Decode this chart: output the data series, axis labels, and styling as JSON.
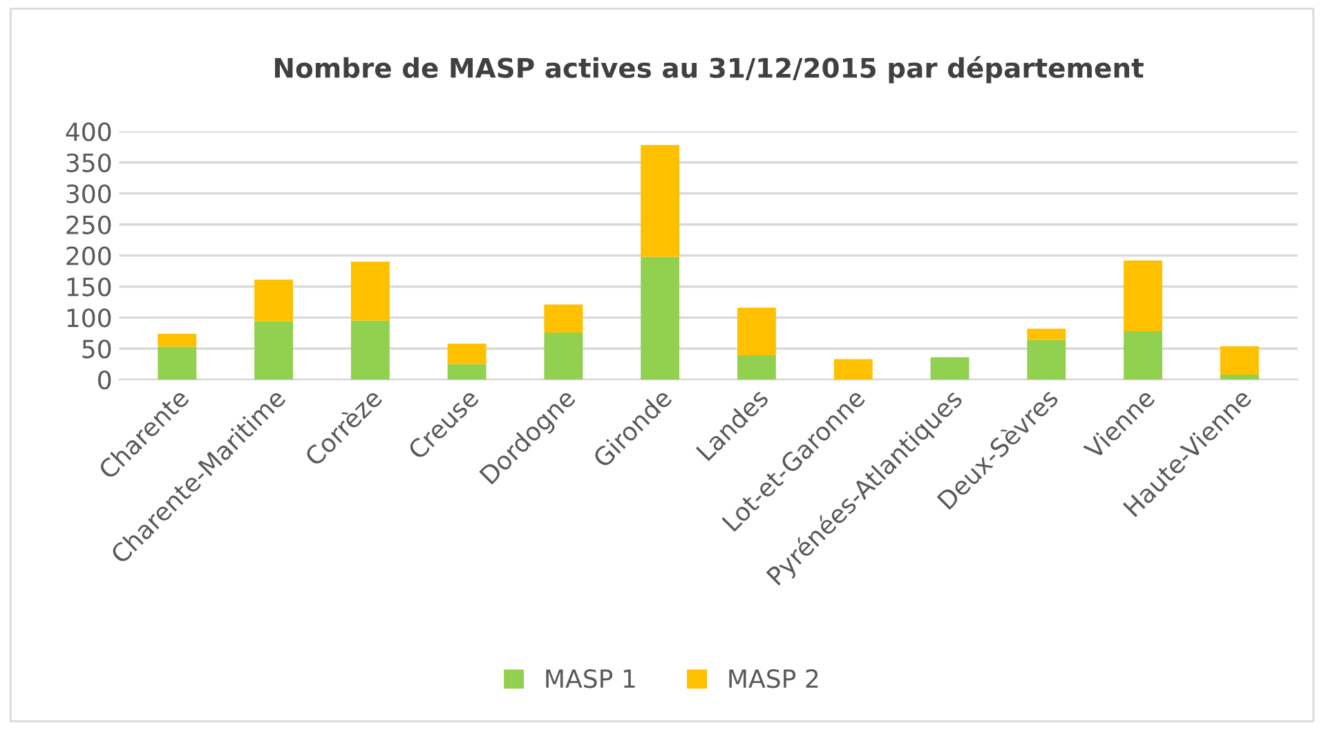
{
  "chart_data": {
    "type": "bar",
    "title": "Nombre de MASP actives au 31/12/2015 par département",
    "categories": [
      "Charente",
      "Charente-Maritime",
      "Corrèze",
      "Creuse",
      "Dordogne",
      "Gironde",
      "Landes",
      "Lot-et-Garonne",
      "Pyrénées-Atlantiques",
      "Deux-Sèvres",
      "Vienne",
      "Haute-Vienne"
    ],
    "series": [
      {
        "name": "MASP 1",
        "color": "#92d050",
        "values": [
          53,
          94,
          95,
          25,
          76,
          198,
          39,
          0,
          36,
          64,
          78,
          8
        ]
      },
      {
        "name": "MASP 2",
        "color": "#ffc000",
        "values": [
          21,
          67,
          95,
          33,
          45,
          180,
          77,
          33,
          0,
          18,
          114,
          46
        ]
      }
    ],
    "stacked": true,
    "ylim": [
      0,
      400
    ],
    "yticks": [
      0,
      50,
      100,
      150,
      200,
      250,
      300,
      350,
      400
    ],
    "grid": "y",
    "legend": "bottom"
  }
}
